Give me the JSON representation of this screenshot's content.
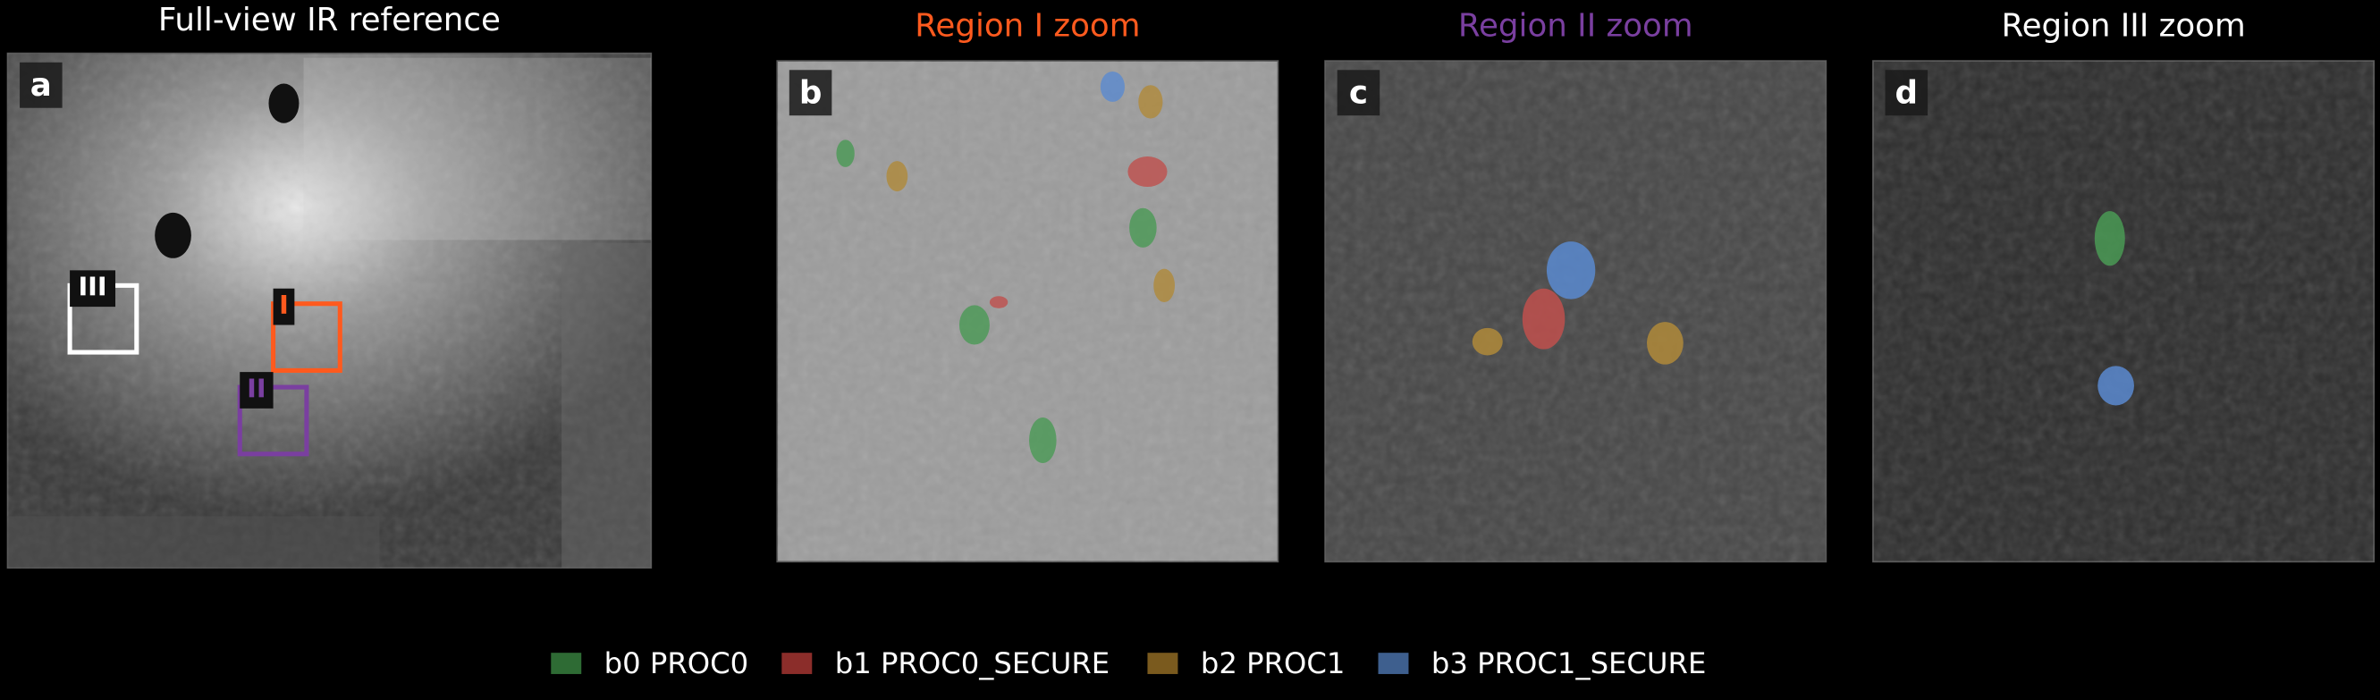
{
  "panels": [
    {
      "letter": "a",
      "title": "Full-view IR reference",
      "title_color": "#ffffff"
    },
    {
      "letter": "b",
      "title": "Region I zoom",
      "title_color": "#ff5a1e"
    },
    {
      "letter": "c",
      "title": "Region II zoom",
      "title_color": "#7a3fa0"
    },
    {
      "letter": "d",
      "title": "Region III zoom",
      "title_color": "#ffffff"
    }
  ],
  "regions": [
    {
      "label": "I",
      "color": "#ff5a1e"
    },
    {
      "label": "II",
      "color": "#7a3fa0"
    },
    {
      "label": "III",
      "color": "#ffffff"
    }
  ],
  "legend": [
    {
      "label": "b0 PROC0",
      "color": "#2e6b34"
    },
    {
      "label": "b1 PROC0_SECURE",
      "color": "#8b2d2a"
    },
    {
      "label": "b2 PROC1",
      "color": "#7a5a1e"
    },
    {
      "label": "b3 PROC1_SECURE",
      "color": "#3e5f8e"
    }
  ]
}
